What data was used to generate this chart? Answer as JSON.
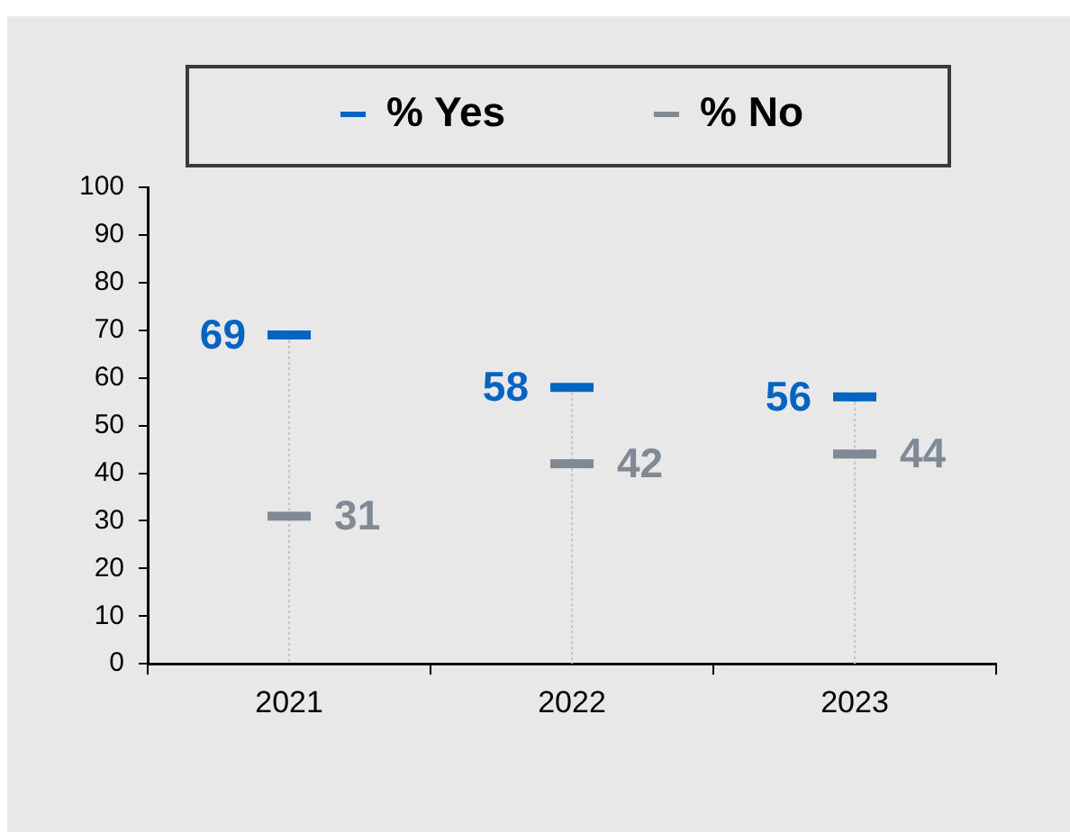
{
  "chart_data": {
    "type": "scatter",
    "categories": [
      "2021",
      "2022",
      "2023"
    ],
    "series": [
      {
        "name": "% Yes",
        "color": "#0563c1",
        "values": [
          69,
          58,
          56
        ]
      },
      {
        "name": "% No",
        "color": "#808a94",
        "values": [
          31,
          42,
          44
        ]
      }
    ],
    "ylim": [
      0,
      100
    ],
    "yticks": [
      0,
      10,
      20,
      30,
      40,
      50,
      60,
      70,
      80,
      90,
      100
    ],
    "legend": "top",
    "data_labels": true
  }
}
